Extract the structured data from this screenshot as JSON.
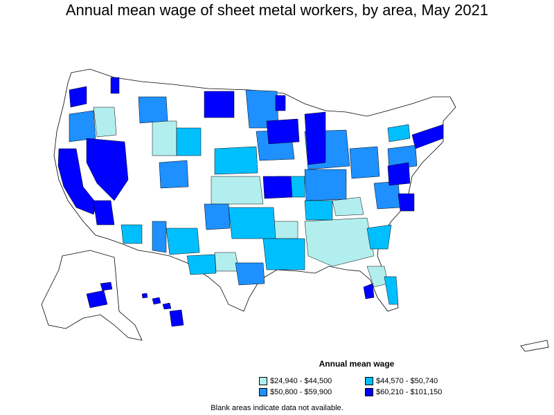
{
  "title": "Annual mean wage of sheet metal workers, by area, May 2021",
  "legend": {
    "heading": "Annual mean wage",
    "items": [
      {
        "label": "$24,940 - $44,500",
        "color": "#b2eeee"
      },
      {
        "label": "$44,570 - $50,740",
        "color": "#00bfff"
      },
      {
        "label": "$50,800 - $59,900",
        "color": "#1e90ff"
      },
      {
        "label": "$60,210 - $101,150",
        "color": "#0000ff"
      }
    ]
  },
  "note": "Blank areas indicate data not available."
}
